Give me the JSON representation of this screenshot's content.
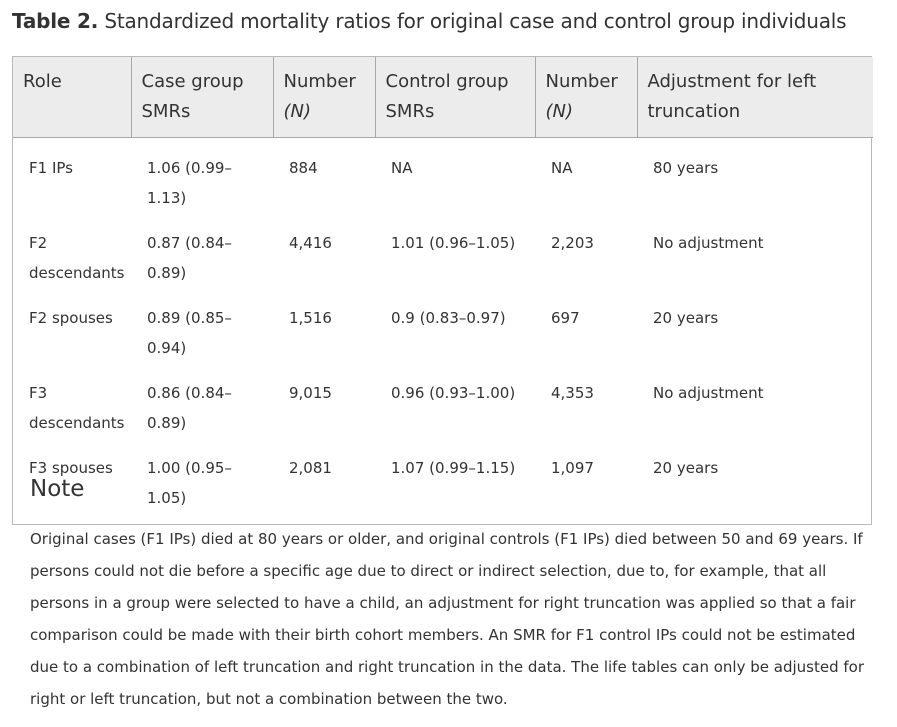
{
  "caption": {
    "label": "Table 2.",
    "text": "Standardized mortality ratios for original case and control group individuals"
  },
  "table": {
    "headers": [
      {
        "line1": "Role",
        "line2": ""
      },
      {
        "line1": "Case group",
        "line2": "SMRs"
      },
      {
        "line1": "Number",
        "line2": "(N)"
      },
      {
        "line1": "Control group",
        "line2": "SMRs"
      },
      {
        "line1": "Number",
        "line2": "(N)"
      },
      {
        "line1": "Adjustment for left",
        "line2": "truncation"
      }
    ],
    "rows": [
      [
        "F1 IPs",
        "1.06 (0.99–1.13)",
        "884",
        "NA",
        "NA",
        "80 years"
      ],
      [
        "F2 descendants",
        "0.87 (0.84–0.89)",
        "4,416",
        "1.01 (0.96–1.05)",
        "2,203",
        "No adjustment"
      ],
      [
        "F2 spouses",
        "0.89 (0.85–0.94)",
        "1,516",
        "0.9 (0.83–0.97)",
        "697",
        "20 years"
      ],
      [
        "F3 descendants",
        "0.86 (0.84–0.89)",
        "9,015",
        "0.96 (0.93–1.00)",
        "4,353",
        "No adjustment"
      ],
      [
        "F3 spouses",
        "1.00 (0.95–1.05)",
        "2,081",
        "1.07 (0.99–1.15)",
        "1,097",
        "20 years"
      ]
    ]
  },
  "note": {
    "title": "Note",
    "body": "Original cases (F1 IPs) died at 80 years or older, and original controls (F1 IPs) died between 50 and 69 years. If persons could not die before a specific age due to direct or indirect selection, due to, for example, that all persons in a group were selected to have a child, an adjustment for right truncation was applied so that a fair comparison could be made with their birth cohort members. An SMR for F1 control IPs could not be estimated due to a combination of left truncation and right truncation in the data. The life tables can only be adjusted for right or left truncation, but not a combination between the two."
  }
}
